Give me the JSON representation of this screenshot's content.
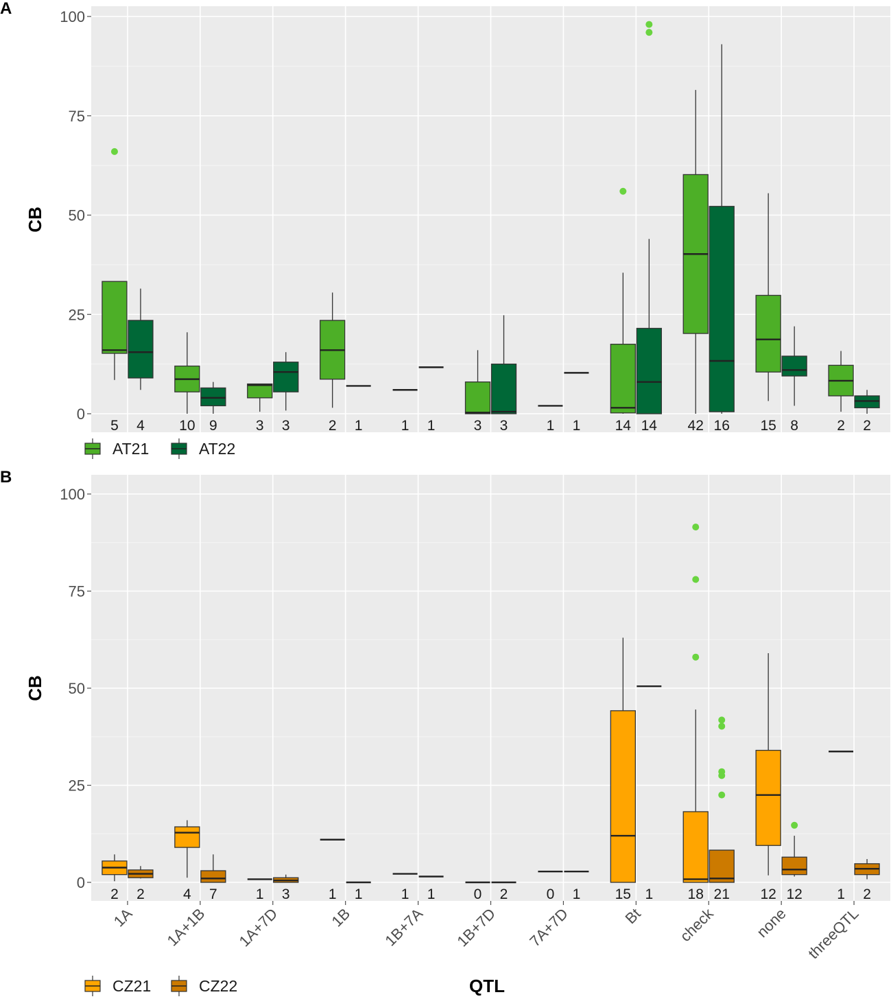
{
  "figure": {
    "x_axis_title": "QTL",
    "y_axis_title": "CB"
  },
  "chart_data": [
    {
      "panel": "A",
      "type": "box",
      "categories": [
        "1A",
        "1A+1B",
        "1A+7D",
        "1B",
        "1B+7A",
        "1B+7D",
        "7A+7D",
        "Bt",
        "check",
        "none",
        "threeQTL"
      ],
      "xlabel": "",
      "ylabel": "CB",
      "ylim": [
        0,
        100
      ],
      "yticks": [
        0,
        25,
        50,
        75,
        100
      ],
      "grid": true,
      "legend_position": "bottom-left",
      "series": [
        {
          "name": "AT21",
          "color": "#4daf27",
          "boxes": [
            {
              "cat": "1A",
              "n": 5,
              "low": 8.5,
              "q1": 15.2,
              "med": 16,
              "q3": 33.3,
              "high": 33.3,
              "outliers": [
                66
              ]
            },
            {
              "cat": "1A+1B",
              "n": 10,
              "low": 0,
              "q1": 5.5,
              "med": 8.7,
              "q3": 12,
              "high": 20.5,
              "outliers": []
            },
            {
              "cat": "1A+7D",
              "n": 3,
              "low": 0.5,
              "q1": 4,
              "med": 7.2,
              "q3": 7.5,
              "high": 7.5,
              "outliers": []
            },
            {
              "cat": "1B",
              "n": 2,
              "low": 1.5,
              "q1": 8.7,
              "med": 16,
              "q3": 23.5,
              "high": 30.5,
              "outliers": []
            },
            {
              "cat": "1B+7A",
              "n": 1,
              "low": 6,
              "q1": 6,
              "med": 6,
              "q3": 6,
              "high": 6,
              "outliers": []
            },
            {
              "cat": "1B+7D",
              "n": 3,
              "low": 0,
              "q1": 0,
              "med": 0.3,
              "q3": 8,
              "high": 16,
              "outliers": []
            },
            {
              "cat": "7A+7D",
              "n": 1,
              "low": 2,
              "q1": 2,
              "med": 2,
              "q3": 2,
              "high": 2,
              "outliers": []
            },
            {
              "cat": "Bt",
              "n": 14,
              "low": 0,
              "q1": 0.2,
              "med": 1.5,
              "q3": 17.5,
              "high": 35.5,
              "outliers": [
                56
              ]
            },
            {
              "cat": "check",
              "n": 42,
              "low": 0,
              "q1": 20.2,
              "med": 40.2,
              "q3": 60.2,
              "high": 81.5,
              "outliers": []
            },
            {
              "cat": "none",
              "n": 15,
              "low": 3.2,
              "q1": 10.5,
              "med": 18.7,
              "q3": 29.8,
              "high": 55.5,
              "outliers": []
            },
            {
              "cat": "threeQTL",
              "n": 2,
              "low": 0.5,
              "q1": 4.5,
              "med": 8.3,
              "q3": 12.2,
              "high": 15.8,
              "outliers": []
            }
          ]
        },
        {
          "name": "AT22",
          "color": "#006837",
          "boxes": [
            {
              "cat": "1A",
              "n": 4,
              "low": 6,
              "q1": 9,
              "med": 15.5,
              "q3": 23.5,
              "high": 31.5,
              "outliers": []
            },
            {
              "cat": "1A+1B",
              "n": 9,
              "low": 0,
              "q1": 2,
              "med": 4,
              "q3": 6.5,
              "high": 8,
              "outliers": []
            },
            {
              "cat": "1A+7D",
              "n": 3,
              "low": 0.8,
              "q1": 5.5,
              "med": 10.5,
              "q3": 13,
              "high": 15.5,
              "outliers": []
            },
            {
              "cat": "1B",
              "n": 1,
              "low": 7,
              "q1": 7,
              "med": 7,
              "q3": 7,
              "high": 7,
              "outliers": []
            },
            {
              "cat": "1B+7A",
              "n": 1,
              "low": 11.7,
              "q1": 11.7,
              "med": 11.7,
              "q3": 11.7,
              "high": 11.7,
              "outliers": []
            },
            {
              "cat": "1B+7D",
              "n": 3,
              "low": 0,
              "q1": 0,
              "med": 0.5,
              "q3": 12.5,
              "high": 24.8,
              "outliers": []
            },
            {
              "cat": "7A+7D",
              "n": 1,
              "low": 10.3,
              "q1": 10.3,
              "med": 10.3,
              "q3": 10.3,
              "high": 10.3,
              "outliers": []
            },
            {
              "cat": "Bt",
              "n": 14,
              "low": 0,
              "q1": 0,
              "med": 8,
              "q3": 21.5,
              "high": 44,
              "outliers": [
                96,
                98
              ]
            },
            {
              "cat": "check",
              "n": 16,
              "low": 0,
              "q1": 0.5,
              "med": 13.3,
              "q3": 52.2,
              "high": 93,
              "outliers": []
            },
            {
              "cat": "none",
              "n": 8,
              "low": 2,
              "q1": 9.5,
              "med": 11,
              "q3": 14.5,
              "high": 22,
              "outliers": []
            },
            {
              "cat": "threeQTL",
              "n": 2,
              "low": 0,
              "q1": 1.5,
              "med": 3.2,
              "q3": 4.5,
              "high": 6,
              "outliers": []
            }
          ]
        }
      ]
    },
    {
      "panel": "B",
      "type": "box",
      "categories": [
        "1A",
        "1A+1B",
        "1A+7D",
        "1B",
        "1B+7A",
        "1B+7D",
        "7A+7D",
        "Bt",
        "check",
        "none",
        "threeQTL"
      ],
      "xlabel": "QTL",
      "ylabel": "CB",
      "ylim": [
        0,
        100
      ],
      "yticks": [
        0,
        25,
        50,
        75,
        100
      ],
      "grid": true,
      "legend_position": "bottom-left",
      "series": [
        {
          "name": "CZ21",
          "color": "#ffa500",
          "boxes": [
            {
              "cat": "1A",
              "n": 2,
              "low": 0.3,
              "q1": 2,
              "med": 3.8,
              "q3": 5.5,
              "high": 7.2,
              "outliers": []
            },
            {
              "cat": "1A+1B",
              "n": 4,
              "low": 1.2,
              "q1": 9,
              "med": 12.8,
              "q3": 14.3,
              "high": 16,
              "outliers": []
            },
            {
              "cat": "1A+7D",
              "n": 1,
              "low": 0.8,
              "q1": 0.8,
              "med": 0.8,
              "q3": 0.8,
              "high": 0.8,
              "outliers": []
            },
            {
              "cat": "1B",
              "n": 1,
              "low": 11,
              "q1": 11,
              "med": 11,
              "q3": 11,
              "high": 11,
              "outliers": []
            },
            {
              "cat": "1B+7A",
              "n": 1,
              "low": 2.2,
              "q1": 2.2,
              "med": 2.2,
              "q3": 2.2,
              "high": 2.2,
              "outliers": []
            },
            {
              "cat": "1B+7D",
              "n": 0,
              "low": 0,
              "q1": 0,
              "med": 0,
              "q3": 0,
              "high": 0,
              "outliers": []
            },
            {
              "cat": "7A+7D",
              "n": 0,
              "low": 2.8,
              "q1": 2.8,
              "med": 2.8,
              "q3": 2.8,
              "high": 2.8,
              "outliers": []
            },
            {
              "cat": "Bt",
              "n": 15,
              "low": 0,
              "q1": 0,
              "med": 12,
              "q3": 44.2,
              "high": 63,
              "outliers": []
            },
            {
              "cat": "check",
              "n": 18,
              "low": 0,
              "q1": 0,
              "med": 0.8,
              "q3": 18.2,
              "high": 44.5,
              "outliers": [
                58,
                78,
                91.5
              ]
            },
            {
              "cat": "none",
              "n": 12,
              "low": 1.8,
              "q1": 9.5,
              "med": 22.5,
              "q3": 34,
              "high": 59,
              "outliers": []
            },
            {
              "cat": "threeQTL",
              "n": 1,
              "low": 33.7,
              "q1": 33.7,
              "med": 33.7,
              "q3": 33.7,
              "high": 33.7,
              "outliers": []
            }
          ]
        },
        {
          "name": "CZ22",
          "color": "#cc7a00",
          "boxes": [
            {
              "cat": "1A",
              "n": 2,
              "low": 1,
              "q1": 1.2,
              "med": 2.2,
              "q3": 3.2,
              "high": 4.2,
              "outliers": []
            },
            {
              "cat": "1A+1B",
              "n": 7,
              "low": 0,
              "q1": 0,
              "med": 1,
              "q3": 3,
              "high": 7.2,
              "outliers": []
            },
            {
              "cat": "1A+7D",
              "n": 3,
              "low": 0,
              "q1": 0,
              "med": 0.5,
              "q3": 1.2,
              "high": 2,
              "outliers": []
            },
            {
              "cat": "1B",
              "n": 1,
              "low": 0,
              "q1": 0,
              "med": 0,
              "q3": 0,
              "high": 0,
              "outliers": []
            },
            {
              "cat": "1B+7A",
              "n": 1,
              "low": 1.5,
              "q1": 1.5,
              "med": 1.5,
              "q3": 1.5,
              "high": 1.5,
              "outliers": []
            },
            {
              "cat": "1B+7D",
              "n": 2,
              "low": 0,
              "q1": 0,
              "med": 0,
              "q3": 0,
              "high": 0,
              "outliers": []
            },
            {
              "cat": "7A+7D",
              "n": 1,
              "low": 2.8,
              "q1": 2.8,
              "med": 2.8,
              "q3": 2.8,
              "high": 2.8,
              "outliers": []
            },
            {
              "cat": "Bt",
              "n": 1,
              "low": 50.5,
              "q1": 50.5,
              "med": 50.5,
              "q3": 50.5,
              "high": 50.5,
              "outliers": []
            },
            {
              "cat": "check",
              "n": 21,
              "low": 0,
              "q1": 0,
              "med": 1,
              "q3": 8.3,
              "high": 8.3,
              "outliers": [
                22.5,
                27.5,
                28.5,
                40.2,
                41.8
              ]
            },
            {
              "cat": "none",
              "n": 12,
              "low": 1.5,
              "q1": 2,
              "med": 3.3,
              "q3": 6.5,
              "high": 12,
              "outliers": [
                14.7
              ]
            },
            {
              "cat": "threeQTL",
              "n": 2,
              "low": 0.8,
              "q1": 2,
              "med": 3.5,
              "q3": 4.8,
              "high": 6,
              "outliers": []
            }
          ]
        }
      ]
    }
  ],
  "outlier_color": "#6ad440"
}
